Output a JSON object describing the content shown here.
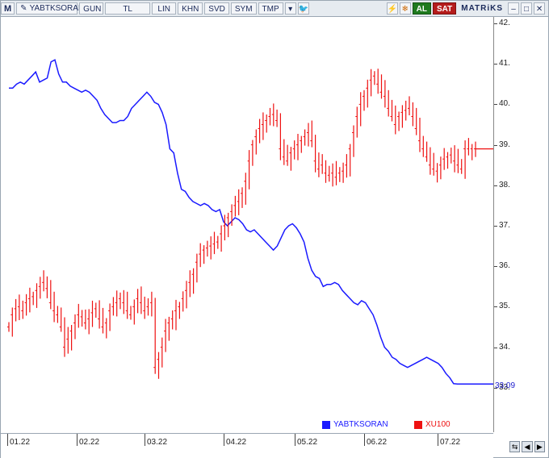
{
  "toolbar": {
    "m_label": "M",
    "symbol": "YABTKSORAN",
    "period": "GUN",
    "currency": "TL",
    "lin": "LIN",
    "khn": "KHN",
    "svd": "SVD",
    "sym": "SYM",
    "tmp": "TMP",
    "buy": "AL",
    "sell": "SAT",
    "brand": "MATRiKS"
  },
  "legend": {
    "series1": "YABTKSORAN",
    "series2": "XU100"
  },
  "last_value_label": "33.09",
  "colors": {
    "series1": "#1a1aff",
    "series2": "#ee1111"
  },
  "chart_data": {
    "type": "line",
    "x_ticks": [
      "01.22",
      "02.22",
      "03.22",
      "04.22",
      "05.22",
      "06.22",
      "07.22"
    ],
    "y_ticks": [
      "33.",
      "34.",
      "35.",
      "36.",
      "37.",
      "38.",
      "39.",
      "40.",
      "41.",
      "42."
    ],
    "ylim": [
      32.0,
      42.0
    ],
    "series": [
      {
        "name": "YABTKSORAN",
        "style": "line",
        "values": [
          40.4,
          40.4,
          40.5,
          40.55,
          40.5,
          40.6,
          40.7,
          40.8,
          40.55,
          40.6,
          40.65,
          41.05,
          41.1,
          40.75,
          40.55,
          40.55,
          40.45,
          40.4,
          40.35,
          40.3,
          40.35,
          40.3,
          40.2,
          40.1,
          39.9,
          39.75,
          39.65,
          39.55,
          39.55,
          39.6,
          39.6,
          39.7,
          39.9,
          40.0,
          40.1,
          40.2,
          40.3,
          40.2,
          40.05,
          40.0,
          39.8,
          39.5,
          38.9,
          38.8,
          38.3,
          37.9,
          37.85,
          37.7,
          37.6,
          37.55,
          37.5,
          37.55,
          37.5,
          37.4,
          37.35,
          37.4,
          37.1,
          37.0,
          37.1,
          37.2,
          37.15,
          37.05,
          36.9,
          36.85,
          36.9,
          36.8,
          36.7,
          36.6,
          36.5,
          36.4,
          36.5,
          36.7,
          36.9,
          37.0,
          37.05,
          36.95,
          36.8,
          36.6,
          36.2,
          35.9,
          35.75,
          35.7,
          35.5,
          35.55,
          35.55,
          35.6,
          35.55,
          35.4,
          35.3,
          35.2,
          35.1,
          35.05,
          35.15,
          35.1,
          34.95,
          34.8,
          34.55,
          34.25,
          34.0,
          33.9,
          33.75,
          33.7,
          33.6,
          33.55,
          33.5,
          33.55,
          33.6,
          33.65,
          33.7,
          33.75,
          33.7,
          33.65,
          33.6,
          33.5,
          33.35,
          33.25,
          33.1,
          33.09,
          33.09,
          33.09
        ]
      },
      {
        "name": "XU100",
        "style": "bars",
        "values": [
          34.5,
          34.8,
          34.95,
          35.0,
          34.9,
          35.1,
          35.2,
          35.25,
          35.4,
          35.5,
          35.6,
          35.45,
          35.1,
          34.9,
          34.8,
          34.5,
          34.0,
          34.2,
          34.4,
          34.6,
          34.8,
          34.75,
          34.6,
          34.7,
          34.85,
          34.95,
          34.7,
          34.5,
          34.6,
          34.9,
          35.0,
          35.1,
          35.2,
          35.1,
          34.9,
          34.8,
          35.0,
          35.2,
          35.1,
          34.9,
          35.0,
          35.1,
          33.5,
          33.7,
          34.0,
          34.4,
          34.6,
          34.7,
          34.9,
          35.0,
          35.2,
          35.4,
          35.6,
          35.8,
          36.1,
          36.3,
          36.4,
          36.45,
          36.5,
          36.55,
          36.6,
          36.8,
          37.0,
          37.2,
          37.35,
          37.5,
          37.6,
          37.8,
          38.1,
          38.6,
          39.0,
          39.2,
          39.4,
          39.5,
          39.6,
          39.7,
          39.75,
          39.6,
          38.9,
          38.7,
          38.6,
          38.8,
          38.9,
          39.0,
          39.1,
          39.2,
          39.3,
          39.1,
          38.6,
          38.4,
          38.5,
          38.3,
          38.25,
          38.3,
          38.2,
          38.3,
          38.35,
          38.5,
          38.9,
          39.3,
          39.7,
          40.0,
          40.2,
          40.4,
          40.6,
          40.7,
          40.5,
          40.3,
          40.2,
          39.9,
          39.7,
          39.5,
          39.7,
          39.8,
          39.85,
          39.9,
          39.7,
          39.4,
          39.1,
          38.9,
          38.7,
          38.5,
          38.4,
          38.35,
          38.5,
          38.65,
          38.7,
          38.75,
          38.6,
          38.5,
          38.4,
          38.9,
          38.9,
          38.9,
          38.9
        ]
      }
    ]
  }
}
